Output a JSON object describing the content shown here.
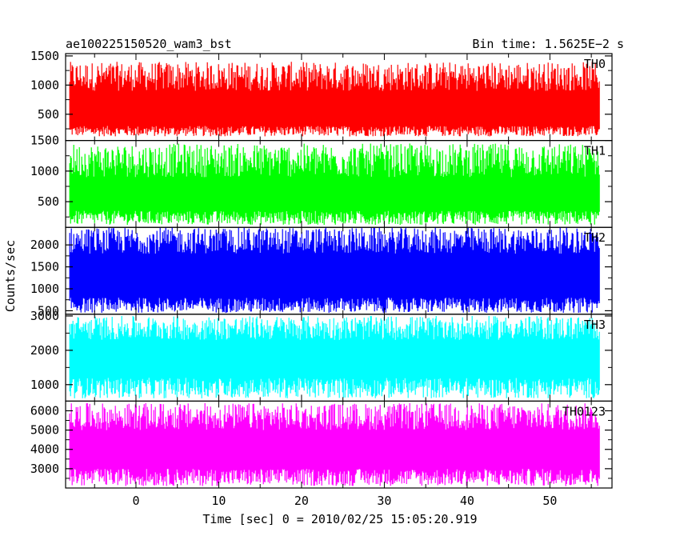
{
  "chart_data": {
    "type": "line",
    "title_left": "ae100225150520_wam3_bst",
    "title_right": "Bin time: 1.5625E−2 s",
    "xlabel": "Time [sec] 0 = 2010/02/25 15:05:20.919",
    "ylabel": "Counts/sec",
    "xlim": [
      -8.5,
      57.5
    ],
    "x_data_range": [
      -8,
      56
    ],
    "xticks": [
      0,
      10,
      20,
      30,
      40,
      50
    ],
    "grid": false,
    "panels": [
      {
        "name": "TH0",
        "color": "#ff0000",
        "ylim": [
          50,
          1540
        ],
        "yticks": [
          500,
          1000,
          1500
        ],
        "band": {
          "low": [
            120,
            300
          ],
          "high": [
            900,
            1400
          ]
        }
      },
      {
        "name": "TH1",
        "color": "#00ff00",
        "ylim": [
          80,
          1500
        ],
        "yticks": [
          500,
          1000,
          1500
        ],
        "band": {
          "low": [
            120,
            350
          ],
          "high": [
            900,
            1450
          ]
        }
      },
      {
        "name": "TH2",
        "color": "#0000ff",
        "ylim": [
          420,
          2400
        ],
        "yticks": [
          500,
          1000,
          1500,
          2000
        ],
        "band": {
          "low": [
            450,
            800
          ],
          "high": [
            1800,
            2400
          ]
        }
      },
      {
        "name": "TH3",
        "color": "#00ffff",
        "ylim": [
          520,
          3050
        ],
        "yticks": [
          1000,
          2000,
          3000
        ],
        "band": {
          "low": [
            600,
            1200
          ],
          "high": [
            2300,
            3000
          ]
        }
      },
      {
        "name": "TH0123",
        "color": "#ff00ff",
        "ylim": [
          2000,
          6500
        ],
        "yticks": [
          3000,
          4000,
          5000,
          6000
        ],
        "band": {
          "low": [
            2100,
            3000
          ],
          "high": [
            5000,
            6400
          ]
        }
      }
    ]
  }
}
